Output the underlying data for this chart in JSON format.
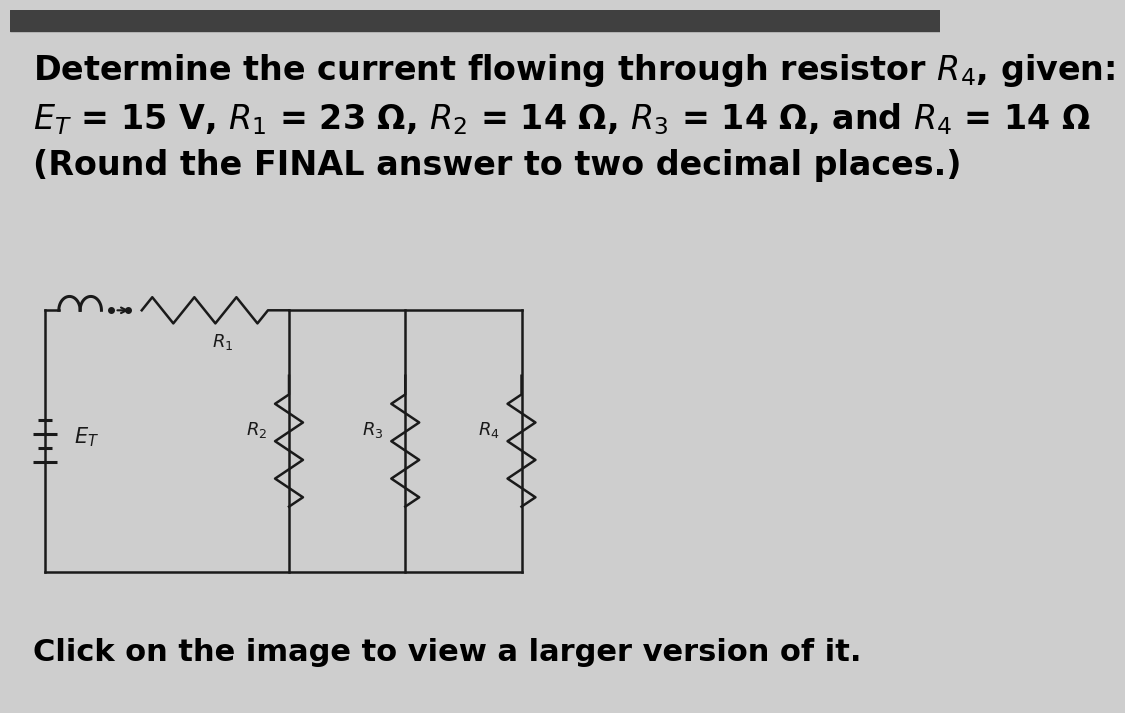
{
  "bg_top_color": "#404040",
  "bg_main_color": "#cecece",
  "text_color": "#000000",
  "line1": "Determine the current flowing through resistor $R_4$, given:",
  "line2": "$E_T$ = 15 V, $R_1$ = 23 Ω, $R_2$ = 14 Ω, $R_3$ = 14 Ω, and $R_4$ = 14 Ω",
  "line3": "(Round the FINAL answer to two decimal places.)",
  "bottom_text": "Click on the image to view a larger version of it.",
  "circuit_color": "#1a1a1a",
  "label_R1": "$R_1$",
  "label_R2": "$R_2$",
  "label_R3": "$R_3$",
  "label_R4": "$R_4$",
  "label_ET": "$E_T$",
  "font_size_main": 24,
  "font_size_bottom": 22,
  "top_bar_height": 0.27
}
